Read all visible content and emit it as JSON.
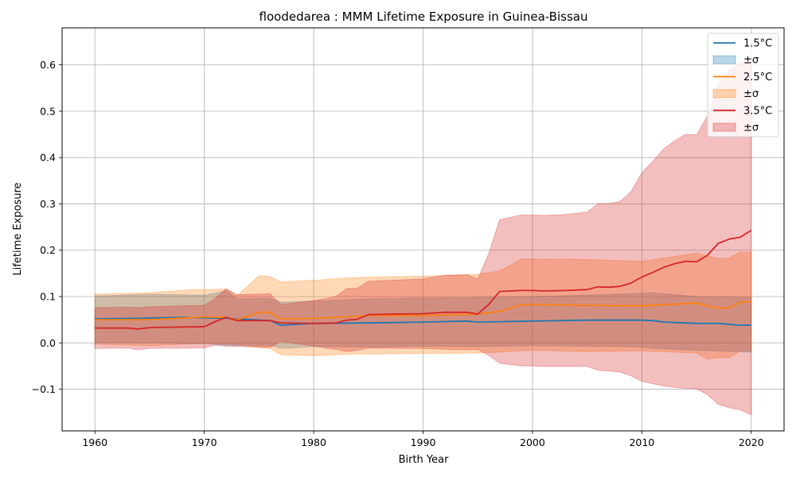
{
  "chart_data": {
    "type": "line",
    "title": "floodedarea : MMM Lifetime Exposure in Guinea-Bissau",
    "xlabel": "Birth Year",
    "ylabel": "Lifetime Exposure",
    "xlim": [
      1957,
      2023
    ],
    "ylim": [
      -0.19,
      0.68
    ],
    "xticks": [
      1960,
      1970,
      1980,
      1990,
      2000,
      2010,
      2020
    ],
    "yticks": [
      -0.1,
      0.0,
      0.1,
      0.2,
      0.3,
      0.4,
      0.5,
      0.6
    ],
    "ytick_labels": [
      "−0.1",
      "0.0",
      "0.1",
      "0.2",
      "0.3",
      "0.4",
      "0.5",
      "0.6"
    ],
    "grid": true,
    "legend_position": "top-right",
    "series": [
      {
        "name": "1.5°C",
        "band_name": "±σ",
        "color": "#1f77b4",
        "points": [
          [
            1960,
            0.052
          ],
          [
            1964,
            0.053
          ],
          [
            1968,
            0.055
          ],
          [
            1972,
            0.053
          ],
          [
            1976,
            0.048
          ],
          [
            1977,
            0.038
          ],
          [
            1980,
            0.042
          ],
          [
            1985,
            0.043
          ],
          [
            1990,
            0.045
          ],
          [
            1994,
            0.047
          ],
          [
            1995,
            0.045
          ],
          [
            2000,
            0.047
          ],
          [
            2005,
            0.049
          ],
          [
            2010,
            0.049
          ],
          [
            2011,
            0.048
          ],
          [
            2012,
            0.045
          ],
          [
            2015,
            0.042
          ],
          [
            2017,
            0.042
          ],
          [
            2019,
            0.038
          ],
          [
            2020,
            0.038
          ]
        ],
        "upper": [
          [
            1960,
            0.101
          ],
          [
            1965,
            0.105
          ],
          [
            1970,
            0.103
          ],
          [
            1972,
            0.112
          ],
          [
            1973,
            0.095
          ],
          [
            1976,
            0.096
          ],
          [
            1977,
            0.088
          ],
          [
            1980,
            0.09
          ],
          [
            1985,
            0.095
          ],
          [
            1990,
            0.097
          ],
          [
            1995,
            0.098
          ],
          [
            2000,
            0.1
          ],
          [
            2005,
            0.103
          ],
          [
            2010,
            0.107
          ],
          [
            2011,
            0.108
          ],
          [
            2012,
            0.106
          ],
          [
            2015,
            0.1
          ],
          [
            2020,
            0.098
          ]
        ],
        "lower": [
          [
            1960,
            0.0
          ],
          [
            1965,
            0.0
          ],
          [
            1970,
            -0.002
          ],
          [
            1972,
            -0.005
          ],
          [
            1976,
            -0.006
          ],
          [
            1977,
            -0.012
          ],
          [
            1980,
            -0.008
          ],
          [
            1985,
            -0.009
          ],
          [
            1990,
            -0.007
          ],
          [
            1995,
            -0.008
          ],
          [
            2000,
            -0.006
          ],
          [
            2005,
            -0.007
          ],
          [
            2010,
            -0.009
          ],
          [
            2011,
            -0.012
          ],
          [
            2015,
            -0.016
          ],
          [
            2020,
            -0.02
          ]
        ]
      },
      {
        "name": "2.5°C",
        "band_name": "±σ",
        "color": "#ff7f0e",
        "points": [
          [
            1960,
            0.05
          ],
          [
            1965,
            0.05
          ],
          [
            1970,
            0.056
          ],
          [
            1972,
            0.055
          ],
          [
            1973,
            0.05
          ],
          [
            1975,
            0.066
          ],
          [
            1976,
            0.066
          ],
          [
            1977,
            0.052
          ],
          [
            1980,
            0.053
          ],
          [
            1983,
            0.056
          ],
          [
            1985,
            0.059
          ],
          [
            1990,
            0.059
          ],
          [
            1995,
            0.062
          ],
          [
            1997,
            0.068
          ],
          [
            1999,
            0.082
          ],
          [
            2000,
            0.083
          ],
          [
            2005,
            0.081
          ],
          [
            2010,
            0.08
          ],
          [
            2015,
            0.086
          ],
          [
            2016,
            0.08
          ],
          [
            2017,
            0.075
          ],
          [
            2018,
            0.076
          ],
          [
            2019,
            0.088
          ],
          [
            2020,
            0.089
          ]
        ],
        "upper": [
          [
            1960,
            0.105
          ],
          [
            1965,
            0.108
          ],
          [
            1969,
            0.115
          ],
          [
            1972,
            0.116
          ],
          [
            1973,
            0.102
          ],
          [
            1975,
            0.145
          ],
          [
            1976,
            0.143
          ],
          [
            1977,
            0.132
          ],
          [
            1980,
            0.135
          ],
          [
            1983,
            0.14
          ],
          [
            1985,
            0.142
          ],
          [
            1990,
            0.144
          ],
          [
            1995,
            0.148
          ],
          [
            1997,
            0.155
          ],
          [
            1999,
            0.181
          ],
          [
            2000,
            0.181
          ],
          [
            2005,
            0.18
          ],
          [
            2010,
            0.176
          ],
          [
            2012,
            0.183
          ],
          [
            2015,
            0.194
          ],
          [
            2016,
            0.188
          ],
          [
            2017,
            0.182
          ],
          [
            2018,
            0.183
          ],
          [
            2019,
            0.196
          ],
          [
            2020,
            0.195
          ]
        ],
        "lower": [
          [
            1960,
            -0.003
          ],
          [
            1965,
            -0.006
          ],
          [
            1970,
            -0.001
          ],
          [
            1973,
            -0.003
          ],
          [
            1975,
            -0.01
          ],
          [
            1976,
            -0.012
          ],
          [
            1977,
            -0.026
          ],
          [
            1980,
            -0.028
          ],
          [
            1983,
            -0.025
          ],
          [
            1985,
            -0.024
          ],
          [
            1990,
            -0.023
          ],
          [
            1995,
            -0.022
          ],
          [
            1997,
            -0.02
          ],
          [
            1999,
            -0.017
          ],
          [
            2000,
            -0.016
          ],
          [
            2005,
            -0.019
          ],
          [
            2010,
            -0.017
          ],
          [
            2015,
            -0.022
          ],
          [
            2016,
            -0.035
          ],
          [
            2017,
            -0.032
          ],
          [
            2018,
            -0.032
          ],
          [
            2019,
            -0.017
          ],
          [
            2020,
            -0.017
          ]
        ]
      },
      {
        "name": "3.5°C",
        "band_name": "±σ",
        "color": "#d62728",
        "points": [
          [
            1960,
            0.032
          ],
          [
            1963,
            0.032
          ],
          [
            1964,
            0.03
          ],
          [
            1965,
            0.033
          ],
          [
            1970,
            0.035
          ],
          [
            1971,
            0.046
          ],
          [
            1972,
            0.055
          ],
          [
            1973,
            0.048
          ],
          [
            1976,
            0.048
          ],
          [
            1977,
            0.043
          ],
          [
            1980,
            0.042
          ],
          [
            1982,
            0.043
          ],
          [
            1983,
            0.049
          ],
          [
            1984,
            0.051
          ],
          [
            1985,
            0.061
          ],
          [
            1990,
            0.063
          ],
          [
            1992,
            0.066
          ],
          [
            1994,
            0.066
          ],
          [
            1995,
            0.062
          ],
          [
            1996,
            0.083
          ],
          [
            1997,
            0.111
          ],
          [
            1999,
            0.113
          ],
          [
            2000,
            0.113
          ],
          [
            2001,
            0.112
          ],
          [
            2003,
            0.113
          ],
          [
            2005,
            0.115
          ],
          [
            2006,
            0.121
          ],
          [
            2007,
            0.12
          ],
          [
            2008,
            0.122
          ],
          [
            2009,
            0.129
          ],
          [
            2010,
            0.142
          ],
          [
            2011,
            0.152
          ],
          [
            2012,
            0.163
          ],
          [
            2013,
            0.171
          ],
          [
            2014,
            0.176
          ],
          [
            2015,
            0.175
          ],
          [
            2016,
            0.189
          ],
          [
            2017,
            0.215
          ],
          [
            2018,
            0.224
          ],
          [
            2019,
            0.228
          ],
          [
            2020,
            0.243
          ]
        ],
        "upper": [
          [
            1960,
            0.076
          ],
          [
            1963,
            0.077
          ],
          [
            1964,
            0.076
          ],
          [
            1965,
            0.078
          ],
          [
            1970,
            0.081
          ],
          [
            1971,
            0.096
          ],
          [
            1972,
            0.117
          ],
          [
            1973,
            0.104
          ],
          [
            1976,
            0.106
          ],
          [
            1977,
            0.083
          ],
          [
            1980,
            0.091
          ],
          [
            1982,
            0.1
          ],
          [
            1983,
            0.117
          ],
          [
            1984,
            0.118
          ],
          [
            1985,
            0.133
          ],
          [
            1990,
            0.138
          ],
          [
            1992,
            0.146
          ],
          [
            1994,
            0.147
          ],
          [
            1995,
            0.138
          ],
          [
            1996,
            0.193
          ],
          [
            1997,
            0.266
          ],
          [
            1999,
            0.276
          ],
          [
            2000,
            0.276
          ],
          [
            2001,
            0.275
          ],
          [
            2003,
            0.277
          ],
          [
            2005,
            0.282
          ],
          [
            2006,
            0.301
          ],
          [
            2007,
            0.301
          ],
          [
            2008,
            0.305
          ],
          [
            2009,
            0.326
          ],
          [
            2010,
            0.367
          ],
          [
            2011,
            0.392
          ],
          [
            2012,
            0.419
          ],
          [
            2013,
            0.436
          ],
          [
            2014,
            0.45
          ],
          [
            2015,
            0.449
          ],
          [
            2016,
            0.49
          ],
          [
            2017,
            0.56
          ],
          [
            2018,
            0.59
          ],
          [
            2019,
            0.605
          ],
          [
            2020,
            0.615
          ]
        ],
        "lower": [
          [
            1960,
            -0.012
          ],
          [
            1963,
            -0.011
          ],
          [
            1964,
            -0.015
          ],
          [
            1965,
            -0.012
          ],
          [
            1970,
            -0.011
          ],
          [
            1971,
            -0.005
          ],
          [
            1972,
            -0.007
          ],
          [
            1973,
            -0.008
          ],
          [
            1976,
            -0.01
          ],
          [
            1977,
            0.003
          ],
          [
            1980,
            -0.007
          ],
          [
            1982,
            -0.014
          ],
          [
            1983,
            -0.019
          ],
          [
            1984,
            -0.016
          ],
          [
            1985,
            -0.011
          ],
          [
            1990,
            -0.012
          ],
          [
            1992,
            -0.014
          ],
          [
            1994,
            -0.015
          ],
          [
            1995,
            -0.014
          ],
          [
            1996,
            -0.027
          ],
          [
            1997,
            -0.044
          ],
          [
            1999,
            -0.05
          ],
          [
            2000,
            -0.05
          ],
          [
            2001,
            -0.051
          ],
          [
            2003,
            -0.051
          ],
          [
            2005,
            -0.051
          ],
          [
            2006,
            -0.059
          ],
          [
            2007,
            -0.061
          ],
          [
            2008,
            -0.063
          ],
          [
            2009,
            -0.071
          ],
          [
            2010,
            -0.083
          ],
          [
            2011,
            -0.088
          ],
          [
            2012,
            -0.093
          ],
          [
            2013,
            -0.096
          ],
          [
            2014,
            -0.098
          ],
          [
            2015,
            -0.099
          ],
          [
            2016,
            -0.112
          ],
          [
            2017,
            -0.133
          ],
          [
            2018,
            -0.14
          ],
          [
            2019,
            -0.145
          ],
          [
            2020,
            -0.155
          ]
        ]
      }
    ]
  }
}
